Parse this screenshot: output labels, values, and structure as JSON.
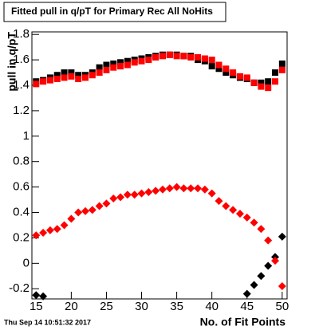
{
  "chart_data": {
    "type": "scatter",
    "title": "Fitted pull in q/pT for Primary Rec All NoHits",
    "x_label": "No. of Fit Points",
    "y_label": "pull in q/pT",
    "footer": "Thu Sep 14 10:51:32 2017",
    "x": [
      15,
      16,
      17,
      18,
      19,
      20,
      21,
      22,
      23,
      24,
      25,
      26,
      27,
      28,
      29,
      30,
      31,
      32,
      33,
      34,
      35,
      36,
      37,
      38,
      39,
      40,
      41,
      42,
      43,
      44,
      45,
      46,
      47,
      48,
      49,
      50
    ],
    "series": [
      {
        "color": "#000000",
        "marker": "square",
        "values": [
          1.43,
          1.44,
          1.46,
          1.48,
          1.5,
          1.5,
          1.48,
          1.48,
          1.5,
          1.54,
          1.56,
          1.57,
          1.58,
          1.59,
          1.6,
          1.61,
          1.62,
          1.63,
          1.64,
          1.64,
          1.64,
          1.63,
          1.63,
          1.6,
          1.59,
          1.55,
          1.53,
          1.5,
          1.48,
          1.46,
          1.45,
          1.42,
          1.42,
          1.43,
          1.5,
          1.57
        ]
      },
      {
        "color": "#ff0000",
        "marker": "square",
        "values": [
          1.41,
          1.43,
          1.44,
          1.45,
          1.46,
          1.47,
          1.45,
          1.46,
          1.48,
          1.5,
          1.52,
          1.54,
          1.55,
          1.56,
          1.58,
          1.59,
          1.6,
          1.62,
          1.63,
          1.64,
          1.63,
          1.63,
          1.62,
          1.62,
          1.61,
          1.6,
          1.56,
          1.53,
          1.5,
          1.47,
          1.46,
          1.42,
          1.39,
          1.38,
          1.43,
          1.52
        ]
      },
      {
        "color": "#000000",
        "marker": "diamond",
        "values": [
          -0.25,
          -0.26,
          null,
          null,
          null,
          null,
          null,
          null,
          null,
          null,
          null,
          null,
          null,
          null,
          null,
          null,
          null,
          null,
          null,
          null,
          null,
          null,
          null,
          null,
          null,
          null,
          null,
          null,
          null,
          null,
          -0.24,
          -0.17,
          -0.1,
          -0.02,
          0.05,
          0.21
        ]
      },
      {
        "color": "#ff0000",
        "marker": "diamond",
        "values": [
          0.22,
          0.24,
          0.26,
          0.27,
          0.3,
          0.35,
          0.4,
          0.41,
          0.42,
          0.45,
          0.47,
          0.51,
          0.52,
          0.54,
          0.54,
          0.55,
          0.56,
          0.57,
          0.58,
          0.59,
          0.6,
          0.59,
          0.59,
          0.59,
          0.58,
          0.55,
          0.49,
          0.45,
          0.42,
          0.39,
          0.36,
          0.32,
          0.27,
          0.18,
          0.02,
          -0.18
        ]
      }
    ],
    "xlim": [
      14.4,
      50.7
    ],
    "ylim": [
      -0.28,
      1.82
    ],
    "xticks": [
      15,
      20,
      25,
      30,
      35,
      40,
      45,
      50
    ],
    "yticks": [
      -0.2,
      0,
      0.2,
      0.4,
      0.6,
      0.8,
      1,
      1.2,
      1.4,
      1.6,
      1.8
    ]
  }
}
